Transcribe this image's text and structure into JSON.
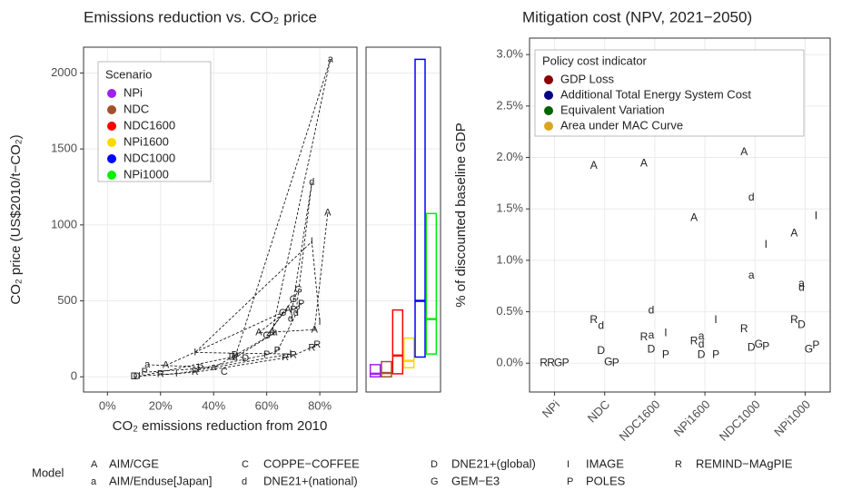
{
  "chart_data": [
    {
      "type": "scatter",
      "title": "Emissions reduction vs. CO₂ price",
      "x_label": "CO₂ emissions reduction from 2010",
      "y_label": "CO₂ price (US$2010/t−CO₂)",
      "xlim": [
        -9,
        94
      ],
      "ylim": [
        -100,
        2170
      ],
      "xticks": [
        {
          "value": 0,
          "label": "0%"
        },
        {
          "value": 20,
          "label": "20%"
        },
        {
          "value": 40,
          "label": "40%"
        },
        {
          "value": 60,
          "label": "60%"
        },
        {
          "value": 80,
          "label": "80%"
        }
      ],
      "yticks": [
        0,
        500,
        1000,
        1500,
        2000
      ],
      "grid": true,
      "legend_title": "Scenario",
      "series": [
        {
          "name": "NPi",
          "color": "#a020f0",
          "min": 0,
          "median": 20,
          "max": 80,
          "points": [
            {
              "label": "D",
              "x": 10,
              "y": 0
            },
            {
              "label": "I",
              "x": 12,
              "y": 5
            },
            {
              "label": "P",
              "x": 14,
              "y": 30
            },
            {
              "label": "a",
              "x": 15,
              "y": 80
            },
            {
              "label": "R",
              "x": 20,
              "y": 15
            }
          ]
        },
        {
          "name": "NDC",
          "color": "#a0522d",
          "min": 0,
          "median": 25,
          "max": 100,
          "points": [
            {
              "label": "D",
              "x": 11,
              "y": 0
            },
            {
              "label": "A",
              "x": 22,
              "y": 75
            },
            {
              "label": "I",
              "x": 26,
              "y": 20
            },
            {
              "label": "R",
              "x": 33,
              "y": 30
            },
            {
              "label": "P",
              "x": 35,
              "y": 55
            },
            {
              "label": "a",
              "x": 40,
              "y": 60
            },
            {
              "label": "C",
              "x": 44,
              "y": 30
            }
          ]
        },
        {
          "name": "NDC1600",
          "color": "#ff0000",
          "min": 20,
          "median": 140,
          "max": 440,
          "points": [
            {
              "label": "D",
              "x": 47,
              "y": 130
            },
            {
              "label": "P",
              "x": 60,
              "y": 145
            },
            {
              "label": "a",
              "x": 63,
              "y": 290
            },
            {
              "label": "G",
              "x": 66,
              "y": 420
            },
            {
              "label": "R",
              "x": 67,
              "y": 125
            },
            {
              "label": "A",
              "x": 68,
              "y": 440
            },
            {
              "label": "I",
              "x": 69,
              "y": 150
            }
          ]
        },
        {
          "name": "NPi1600",
          "color": "#ffd700",
          "min": 60,
          "median": 105,
          "max": 255,
          "points": [
            {
              "label": "I",
              "x": 33,
              "y": 160
            },
            {
              "label": "a",
              "x": 48,
              "y": 125
            },
            {
              "label": "A",
              "x": 57,
              "y": 290
            },
            {
              "label": "G",
              "x": 60,
              "y": 270
            },
            {
              "label": "P",
              "x": 64,
              "y": 170
            },
            {
              "label": "d",
              "x": 69,
              "y": 380
            },
            {
              "label": "R",
              "x": 70,
              "y": 140
            }
          ]
        },
        {
          "name": "NDC1000",
          "color": "#0000ff",
          "min": 130,
          "median": 500,
          "max": 2090,
          "points": [
            {
              "label": "D",
              "x": 48,
              "y": 140
            },
            {
              "label": "G",
              "x": 70,
              "y": 510
            },
            {
              "label": "P",
              "x": 73,
              "y": 480
            },
            {
              "label": "I",
              "x": 77,
              "y": 890
            },
            {
              "label": "d",
              "x": 77,
              "y": 1280
            },
            {
              "label": "A",
              "x": 78,
              "y": 310
            },
            {
              "label": "R",
              "x": 79,
              "y": 210
            },
            {
              "label": "a",
              "x": 84,
              "y": 2090
            }
          ]
        },
        {
          "name": "NPi1000",
          "color": "#00ee00",
          "min": 150,
          "median": 380,
          "max": 1075,
          "points": [
            {
              "label": "D",
              "x": 52,
              "y": 120
            },
            {
              "label": "a",
              "x": 62,
              "y": 290
            },
            {
              "label": "P",
              "x": 70,
              "y": 440
            },
            {
              "label": "d",
              "x": 71,
              "y": 420
            },
            {
              "label": "G",
              "x": 72,
              "y": 570
            },
            {
              "label": "R",
              "x": 77,
              "y": 190
            },
            {
              "label": "I",
              "x": 80,
              "y": 360
            },
            {
              "label": "A",
              "x": 83,
              "y": 1080
            }
          ]
        }
      ]
    },
    {
      "type": "scatter",
      "title": "Mitigation cost (NPV, 2021−2050)",
      "y_label": "% of discounted baseline GDP",
      "categories": [
        "NPi",
        "NDC",
        "NDC1600",
        "NPi1600",
        "NDC1000",
        "NPi1000"
      ],
      "ylim": [
        -0.28,
        3.16
      ],
      "yticks": [
        {
          "value": 0,
          "label": "0.0%"
        },
        {
          "value": 0.5,
          "label": "0.5%"
        },
        {
          "value": 1,
          "label": "1.0%"
        },
        {
          "value": 1.5,
          "label": "1.5%"
        },
        {
          "value": 2,
          "label": "2.0%"
        },
        {
          "value": 2.5,
          "label": "2.5%"
        },
        {
          "value": 3,
          "label": "3.0%"
        }
      ],
      "grid": true,
      "legend_title": "Policy cost indicator",
      "series": [
        {
          "name": "GDP Loss",
          "color": "#8b0000",
          "points": [
            {
              "x": "NPi",
              "label": "R",
              "value": 0
            },
            {
              "x": "NDC",
              "label": "A",
              "value": 1.92
            },
            {
              "x": "NDC",
              "label": "R",
              "value": 0.42
            },
            {
              "x": "NDC1600",
              "label": "A",
              "value": 1.94
            },
            {
              "x": "NDC1600",
              "label": "R",
              "value": 0.25
            },
            {
              "x": "NPi1600",
              "label": "A",
              "value": 1.41
            },
            {
              "x": "NPi1600",
              "label": "R",
              "value": 0.21
            },
            {
              "x": "NDC1000",
              "label": "A",
              "value": 2.05
            },
            {
              "x": "NDC1000",
              "label": "R",
              "value": 0.33
            },
            {
              "x": "NPi1000",
              "label": "A",
              "value": 1.26
            },
            {
              "x": "NPi1000",
              "label": "R",
              "value": 0.42
            }
          ]
        },
        {
          "name": "Additional Total Energy System Cost",
          "color": "#00008b",
          "points": [
            {
              "x": "NPi",
              "label": "R",
              "value": 0
            },
            {
              "x": "NDC",
              "label": "d",
              "value": 0.36
            },
            {
              "x": "NDC",
              "label": "D",
              "value": 0.12
            },
            {
              "x": "NDC1600",
              "label": "d",
              "value": 0.51
            },
            {
              "x": "NDC1600",
              "label": "a",
              "value": 0.27
            },
            {
              "x": "NDC1600",
              "label": "D",
              "value": 0.13
            },
            {
              "x": "NPi1600",
              "label": "a",
              "value": 0.26
            },
            {
              "x": "NPi1600",
              "label": "d",
              "value": 0.18
            },
            {
              "x": "NPi1600",
              "label": "D",
              "value": 0.08
            },
            {
              "x": "NDC1000",
              "label": "d",
              "value": 1.61
            },
            {
              "x": "NDC1000",
              "label": "a",
              "value": 0.85
            },
            {
              "x": "NDC1000",
              "label": "D",
              "value": 0.15
            },
            {
              "x": "NPi1000",
              "label": "a",
              "value": 0.77
            },
            {
              "x": "NPi1000",
              "label": "d",
              "value": 0.73
            },
            {
              "x": "NPi1000",
              "label": "D",
              "value": 0.37
            }
          ]
        },
        {
          "name": "Equivalent Variation",
          "color": "#006400",
          "points": [
            {
              "x": "NPi",
              "label": "G",
              "value": 0
            },
            {
              "x": "NDC",
              "label": "G",
              "value": 0.01
            },
            {
              "x": "NDC1000",
              "label": "G",
              "value": 0.18
            },
            {
              "x": "NPi1000",
              "label": "G",
              "value": 0.13
            }
          ]
        },
        {
          "name": "Area under MAC Curve",
          "color": "#daa520",
          "points": [
            {
              "x": "NPi",
              "label": "P",
              "value": 0
            },
            {
              "x": "NDC",
              "label": "P",
              "value": 0
            },
            {
              "x": "NDC1600",
              "label": "I",
              "value": 0.29
            },
            {
              "x": "NDC1600",
              "label": "P",
              "value": 0.08
            },
            {
              "x": "NPi1600",
              "label": "I",
              "value": 0.42
            },
            {
              "x": "NPi1600",
              "label": "P",
              "value": 0.08
            },
            {
              "x": "NDC1000",
              "label": "I",
              "value": 1.15
            },
            {
              "x": "NDC1000",
              "label": "P",
              "value": 0.16
            },
            {
              "x": "NPi1000",
              "label": "I",
              "value": 1.43
            },
            {
              "x": "NPi1000",
              "label": "P",
              "value": 0.17
            }
          ]
        }
      ]
    }
  ],
  "model_legend": {
    "title": "Model",
    "items": [
      {
        "key": "A",
        "name": "AIM/CGE"
      },
      {
        "key": "a",
        "name": "AIM/Enduse[Japan]"
      },
      {
        "key": "C",
        "name": "COPPE−COFFEE"
      },
      {
        "key": "d",
        "name": "DNE21+(national)"
      },
      {
        "key": "D",
        "name": "DNE21+(global)"
      },
      {
        "key": "G",
        "name": "GEM−E3"
      },
      {
        "key": "I",
        "name": "IMAGE"
      },
      {
        "key": "P",
        "name": "POLES"
      },
      {
        "key": "R",
        "name": "REMIND−MAgPIE"
      }
    ]
  }
}
